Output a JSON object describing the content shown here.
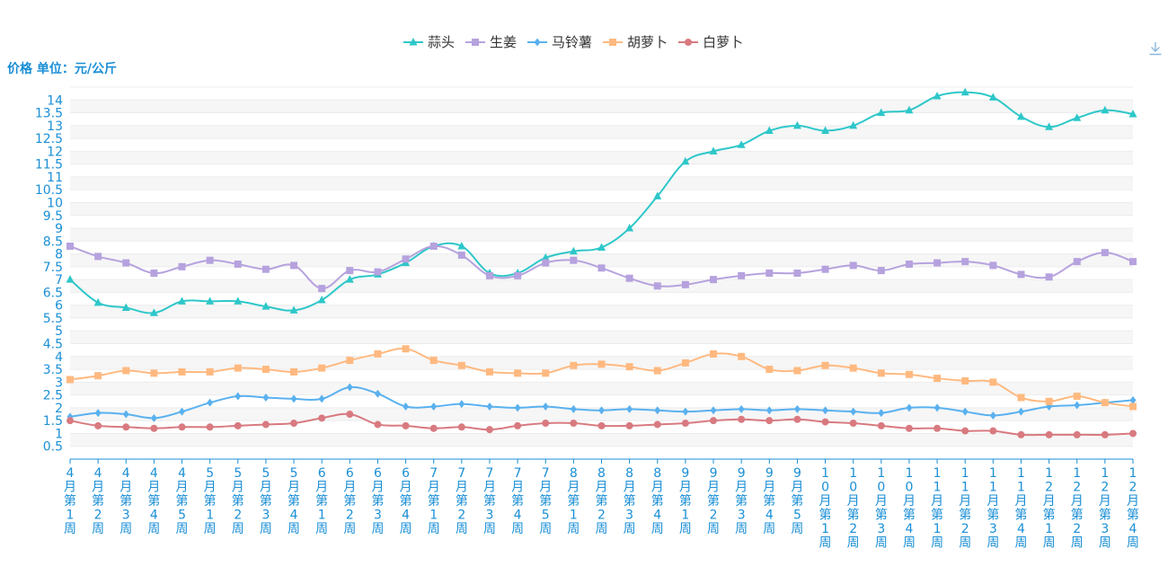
{
  "toolbar": {
    "download_icon": "download-icon"
  },
  "chart_data": {
    "type": "line",
    "title": "",
    "xlabel": "",
    "ylabel": "价格 单位：元/公斤",
    "ylim": [
      0,
      14.5
    ],
    "yticks": [
      "0.5",
      "1",
      "1.5",
      "2",
      "2.5",
      "3",
      "3.5",
      "4",
      "4.5",
      "5",
      "5.5",
      "6",
      "6.5",
      "7",
      "7.5",
      "8",
      "8.5",
      "9",
      "9.5",
      "10",
      "10.5",
      "11",
      "11.5",
      "12",
      "12.5",
      "13",
      "13.5",
      "14"
    ],
    "legend_position": "top-center",
    "grid": true,
    "categories": [
      "4月第1周",
      "4月第2周",
      "4月第3周",
      "4月第4周",
      "4月第5周",
      "5月第1周",
      "5月第2周",
      "5月第3周",
      "5月第4周",
      "6月第1周",
      "6月第2周",
      "6月第3周",
      "6月第4周",
      "7月第1周",
      "7月第2周",
      "7月第3周",
      "7月第4周",
      "7月第5周",
      "8月第1周",
      "8月第2周",
      "8月第3周",
      "8月第4周",
      "9月第1周",
      "9月第2周",
      "9月第3周",
      "9月第4周",
      "9月第5周",
      "10月第1周",
      "10月第2周",
      "10月第3周",
      "10月第4周",
      "11月第1周",
      "11月第2周",
      "11月第3周",
      "11月第4周",
      "12月第1周",
      "12月第2周",
      "12月第3周",
      "12月第4周"
    ],
    "series": [
      {
        "name": "蒜头",
        "color": "#2ec7c9",
        "marker": "triangle",
        "values": [
          7.0,
          6.1,
          5.9,
          5.7,
          6.15,
          6.15,
          6.15,
          5.95,
          5.8,
          6.2,
          7.0,
          7.2,
          7.65,
          8.3,
          8.3,
          7.25,
          7.25,
          7.85,
          8.1,
          8.25,
          9.0,
          10.25,
          11.6,
          12.0,
          12.25,
          12.8,
          13.0,
          12.8,
          13.0,
          13.5,
          13.6,
          14.15,
          14.3,
          14.1,
          13.35,
          12.95,
          13.3,
          13.6,
          13.45
        ]
      },
      {
        "name": "生姜",
        "color": "#b6a2de",
        "marker": "square",
        "values": [
          8.3,
          7.9,
          7.65,
          7.25,
          7.5,
          7.75,
          7.6,
          7.4,
          7.55,
          6.65,
          7.35,
          7.3,
          7.8,
          8.3,
          7.95,
          7.15,
          7.15,
          7.65,
          7.75,
          7.45,
          7.05,
          6.75,
          6.8,
          7.0,
          7.15,
          7.25,
          7.25,
          7.4,
          7.55,
          7.35,
          7.6,
          7.65,
          7.7,
          7.55,
          7.2,
          7.1,
          7.7,
          8.05,
          7.7
        ]
      },
      {
        "name": "马铃薯",
        "color": "#5ab1ef",
        "marker": "diamond",
        "values": [
          1.65,
          1.8,
          1.75,
          1.6,
          1.85,
          2.2,
          2.45,
          2.4,
          2.35,
          2.35,
          2.8,
          2.55,
          2.05,
          2.05,
          2.15,
          2.05,
          2.0,
          2.05,
          1.95,
          1.9,
          1.95,
          1.9,
          1.85,
          1.9,
          1.95,
          1.9,
          1.95,
          1.9,
          1.85,
          1.8,
          2.0,
          2.0,
          1.85,
          1.7,
          1.85,
          2.05,
          2.1,
          2.2,
          2.3
        ]
      },
      {
        "name": "胡萝卜",
        "color": "#ffb980",
        "marker": "square",
        "values": [
          3.1,
          3.25,
          3.45,
          3.35,
          3.4,
          3.4,
          3.55,
          3.5,
          3.4,
          3.55,
          3.85,
          4.1,
          4.3,
          3.85,
          3.65,
          3.4,
          3.35,
          3.35,
          3.65,
          3.7,
          3.6,
          3.45,
          3.75,
          4.1,
          4.0,
          3.5,
          3.45,
          3.65,
          3.55,
          3.35,
          3.3,
          3.15,
          3.05,
          3.0,
          2.4,
          2.25,
          2.45,
          2.2,
          2.05
        ]
      },
      {
        "name": "白萝卜",
        "color": "#d87a80",
        "marker": "circle",
        "values": [
          1.5,
          1.3,
          1.25,
          1.2,
          1.25,
          1.25,
          1.3,
          1.35,
          1.4,
          1.6,
          1.75,
          1.35,
          1.3,
          1.2,
          1.25,
          1.15,
          1.3,
          1.4,
          1.4,
          1.3,
          1.3,
          1.35,
          1.4,
          1.5,
          1.55,
          1.5,
          1.55,
          1.45,
          1.4,
          1.3,
          1.2,
          1.2,
          1.1,
          1.1,
          0.95,
          0.95,
          0.95,
          0.95,
          1.0
        ]
      }
    ]
  }
}
